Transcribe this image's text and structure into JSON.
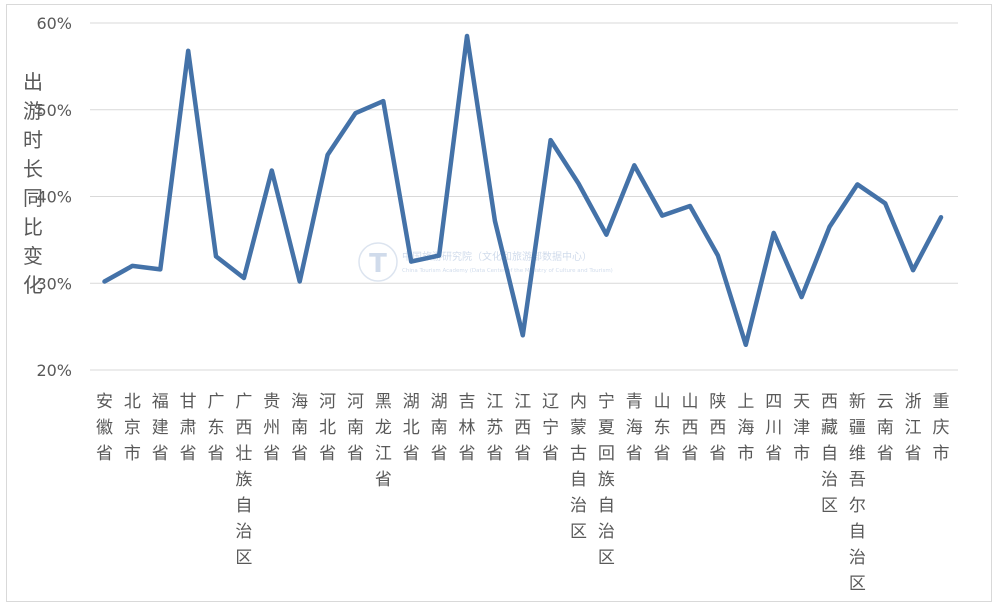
{
  "chart_data": {
    "type": "line",
    "ylabel": "出游时长同比变化",
    "ylim": [
      20,
      60
    ],
    "yticks": [
      "20%",
      "30%",
      "40%",
      "50%",
      "60%"
    ],
    "grid": true,
    "categories": [
      "安徽省",
      "北京市",
      "福建省",
      "甘肃省",
      "广东省",
      "广西壮族自治区",
      "贵州省",
      "海南省",
      "河北省",
      "河南省",
      "黑龙江省",
      "湖北省",
      "湖南省",
      "吉林省",
      "江苏省",
      "江西省",
      "辽宁省",
      "内蒙古自治区",
      "宁夏回族自治区",
      "青海省",
      "山东省",
      "山西省",
      "陕西省",
      "上海市",
      "四川省",
      "天津市",
      "西藏自治区",
      "新疆维吾尔自治区",
      "云南省",
      "浙江省",
      "重庆市"
    ],
    "series": [
      {
        "color": "#4472a8",
        "values": [
          30.2,
          32.0,
          31.6,
          56.8,
          33.1,
          30.6,
          43.0,
          30.2,
          44.8,
          49.6,
          51.0,
          32.5,
          33.2,
          58.5,
          37.2,
          24.0,
          46.5,
          41.5,
          35.6,
          43.6,
          37.8,
          38.9,
          33.2,
          22.9,
          35.8,
          28.4,
          36.5,
          41.4,
          39.2,
          31.5,
          37.6
        ]
      }
    ]
  },
  "watermark": {
    "line1": "中国旅游研究院（文化和旅游部数据中心）",
    "line2": "China Tourism Academy (Data Center of the Ministry of Culture and Tourism)"
  }
}
